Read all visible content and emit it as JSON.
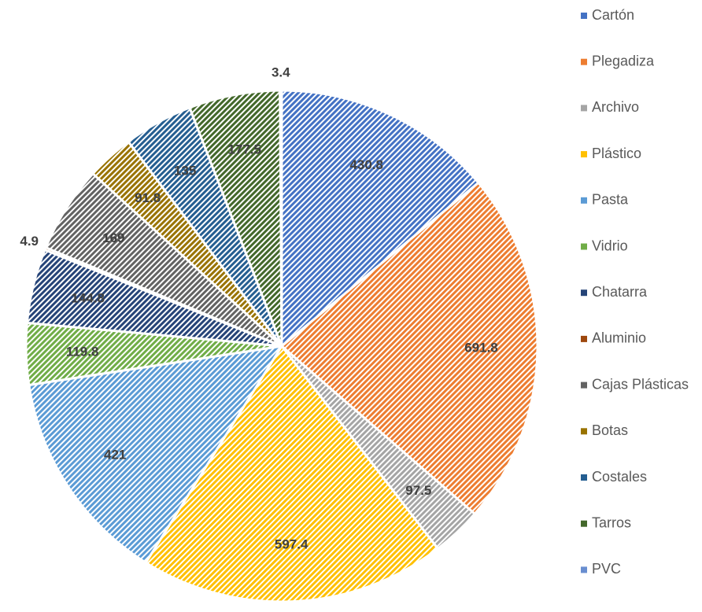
{
  "chart_data": {
    "type": "pie",
    "categories": [
      "Cartón",
      "Plegadiza",
      "Archivo",
      "Plástico",
      "Pasta",
      "Vidrio",
      "Chatarra",
      "Aluminio",
      "Cajas Plásticas",
      "Botas",
      "Costales",
      "Tarros",
      "PVC"
    ],
    "values": [
      430.8,
      691.8,
      97.5,
      597.4,
      421,
      119.8,
      144.8,
      4.9,
      169,
      91.8,
      135,
      177.5,
      3.4
    ],
    "colors": [
      "#4472c4",
      "#ed7d31",
      "#a5a5a5",
      "#ffc000",
      "#5b9bd5",
      "#70ad47",
      "#264478",
      "#9e480e",
      "#636363",
      "#997300",
      "#255e91",
      "#43682b",
      "#698ed0"
    ],
    "legend": "right"
  }
}
